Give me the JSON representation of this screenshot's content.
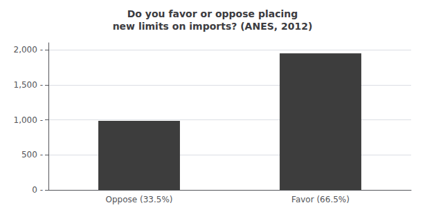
{
  "chart_data": {
    "type": "bar",
    "title": "Do you favor or oppose placing\nnew limits on imports? (ANES, 2012)",
    "categories": [
      "Oppose (33.5%)",
      "Favor (66.5%)"
    ],
    "values": [
      985,
      1950
    ],
    "color": "#3d3d3d",
    "ylim": [
      0,
      2100
    ],
    "yticks": [
      {
        "value": 0,
        "label": "0 -"
      },
      {
        "value": 500,
        "label": "500 -"
      },
      {
        "value": 1000,
        "label": "1,000 -"
      },
      {
        "value": 1500,
        "label": "1,500 -"
      },
      {
        "value": 2000,
        "label": "2,000 -"
      }
    ],
    "grid": true
  }
}
